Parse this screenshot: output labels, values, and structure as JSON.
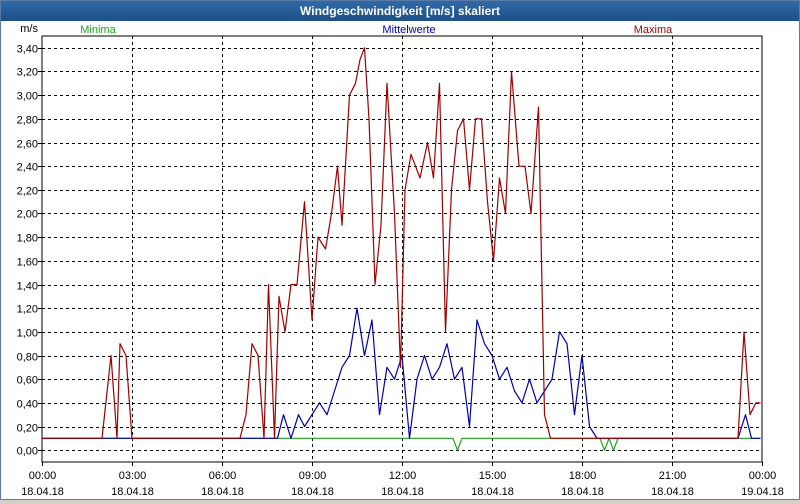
{
  "window": {
    "title": "Windgeschwindigkeit [m/s] skaliert"
  },
  "chart_data": {
    "type": "line",
    "title": "Windgeschwindigkeit [m/s] skaliert",
    "ylabel": "m/s",
    "xlabel": "",
    "ylim": [
      -0.1,
      3.5
    ],
    "xlim": [
      0,
      24
    ],
    "grid": true,
    "legend_position": "top",
    "y_ticks": [
      "0,00",
      "0,20",
      "0,40",
      "0,60",
      "0,80",
      "1,00",
      "1,20",
      "1,40",
      "1,60",
      "1,80",
      "2,00",
      "2,20",
      "2,40",
      "2,60",
      "2,80",
      "3,00",
      "3,20",
      "3,40"
    ],
    "x_ticks": [
      {
        "time": "00:00",
        "date": "18.04.18"
      },
      {
        "time": "03:00",
        "date": "18.04.18"
      },
      {
        "time": "06:00",
        "date": "18.04.18"
      },
      {
        "time": "09:00",
        "date": "18.04.18"
      },
      {
        "time": "12:00",
        "date": "18.04.18"
      },
      {
        "time": "15:00",
        "date": "18.04.18"
      },
      {
        "time": "18:00",
        "date": "18.04.18"
      },
      {
        "time": "21:00",
        "date": "18.04.18"
      },
      {
        "time": "00:00",
        "date": "19.04.18"
      }
    ],
    "series": [
      {
        "name": "Minima",
        "color": "#1aa31a",
        "x": [
          0,
          13.7,
          13.85,
          14.0,
          18.6,
          18.75,
          18.9,
          19.05,
          19.2,
          19.35,
          23.95
        ],
        "y": [
          0.1,
          0.1,
          0.0,
          0.1,
          0.1,
          0.0,
          0.1,
          0.0,
          0.1,
          0.1,
          0.1
        ]
      },
      {
        "name": "Mittelwerte",
        "color": "#0000b0",
        "x": [
          0,
          7.85,
          8.05,
          8.3,
          8.55,
          8.75,
          9.0,
          9.25,
          9.5,
          9.75,
          10.0,
          10.25,
          10.5,
          10.75,
          11.0,
          11.25,
          11.5,
          11.75,
          12.0,
          12.25,
          12.5,
          12.75,
          13.0,
          13.25,
          13.5,
          13.75,
          14.0,
          14.25,
          14.5,
          14.75,
          15.0,
          15.25,
          15.5,
          15.75,
          16.0,
          16.25,
          16.5,
          16.75,
          17.0,
          17.25,
          17.5,
          17.75,
          18.0,
          18.25,
          18.5,
          18.75,
          18.9,
          19.1,
          19.5,
          20.0,
          21.0,
          22.0,
          23.2,
          23.45,
          23.65,
          23.95
        ],
        "y": [
          0.1,
          0.1,
          0.3,
          0.1,
          0.3,
          0.2,
          0.3,
          0.4,
          0.3,
          0.5,
          0.7,
          0.8,
          1.2,
          0.8,
          1.1,
          0.3,
          0.7,
          0.6,
          0.8,
          0.1,
          0.6,
          0.8,
          0.6,
          0.7,
          0.9,
          0.6,
          0.7,
          0.2,
          1.1,
          0.9,
          0.8,
          0.6,
          0.7,
          0.5,
          0.4,
          0.6,
          0.4,
          0.5,
          0.6,
          1.0,
          0.9,
          0.3,
          0.8,
          0.2,
          0.1,
          0.1,
          0.1,
          0.1,
          0.1,
          0.1,
          0.1,
          0.1,
          0.1,
          0.3,
          0.1,
          0.1
        ]
      },
      {
        "name": "Maxima",
        "color": "#a00000",
        "x": [
          0,
          2.0,
          2.3,
          2.5,
          2.6,
          2.8,
          3.0,
          6.6,
          6.8,
          7.0,
          7.2,
          7.4,
          7.55,
          7.75,
          7.9,
          8.1,
          8.3,
          8.5,
          8.75,
          9.0,
          9.2,
          9.45,
          9.65,
          9.85,
          10.0,
          10.25,
          10.45,
          10.6,
          10.75,
          10.9,
          11.1,
          11.3,
          11.5,
          11.75,
          11.95,
          12.1,
          12.3,
          12.6,
          12.85,
          13.05,
          13.25,
          13.45,
          13.65,
          13.85,
          14.05,
          14.25,
          14.45,
          14.65,
          14.85,
          15.05,
          15.25,
          15.45,
          15.65,
          15.9,
          16.1,
          16.3,
          16.55,
          16.75,
          16.95,
          17.15,
          17.35,
          17.55,
          17.75,
          17.95,
          18.15,
          18.35,
          18.5,
          18.7,
          18.9,
          19.1,
          19.3,
          23.0,
          23.2,
          23.4,
          23.6,
          23.8,
          23.95
        ],
        "y": [
          0.1,
          0.1,
          0.8,
          0.1,
          0.9,
          0.8,
          0.1,
          0.1,
          0.3,
          0.9,
          0.8,
          0.1,
          1.4,
          0.1,
          1.3,
          1.0,
          1.4,
          1.4,
          2.1,
          1.1,
          1.8,
          1.7,
          2.0,
          2.4,
          1.9,
          3.0,
          3.1,
          3.3,
          3.4,
          2.8,
          1.4,
          1.9,
          3.1,
          2.0,
          0.7,
          2.2,
          2.5,
          2.3,
          2.6,
          2.3,
          3.1,
          1.0,
          2.2,
          2.7,
          2.8,
          2.2,
          2.8,
          2.8,
          2.1,
          1.6,
          2.3,
          2.0,
          3.2,
          2.4,
          2.4,
          2.0,
          2.9,
          0.3,
          0.1,
          0.1,
          0.1,
          0.1,
          0.1,
          0.1,
          0.1,
          0.1,
          0.1,
          0.1,
          0.1,
          0.1,
          0.1,
          0.1,
          0.1,
          1.0,
          0.3,
          0.4,
          0.4
        ]
      }
    ]
  }
}
